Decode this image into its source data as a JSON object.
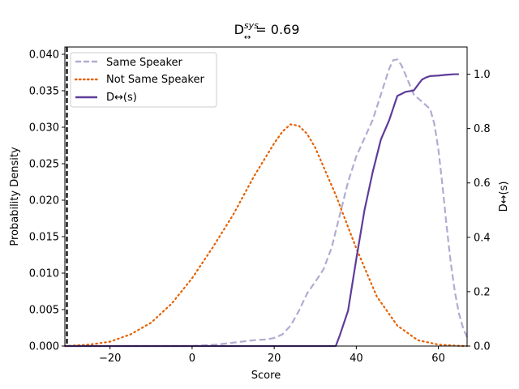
{
  "chart_data": {
    "type": "line",
    "title": "D",
    "title_sup": "sys",
    "title_sub": "↔",
    "title_value": "= 0.69",
    "xlabel": "Score",
    "ylabel": "Probability Density",
    "y2label": "D↔(s)",
    "xlim": [
      -31,
      67
    ],
    "ylim": [
      0,
      0.041
    ],
    "y2lim": [
      0,
      1.1
    ],
    "xticks": [
      -20,
      0,
      20,
      40,
      60
    ],
    "xtick_labels": [
      "−20",
      "0",
      "20",
      "40",
      "60"
    ],
    "yticks": [
      0,
      0.005,
      0.01,
      0.015,
      0.02,
      0.025,
      0.03,
      0.035,
      0.04
    ],
    "ytick_labels": [
      "0.000",
      "0.005",
      "0.010",
      "0.015",
      "0.020",
      "0.025",
      "0.030",
      "0.035",
      "0.040"
    ],
    "y2ticks": [
      0,
      0.2,
      0.4,
      0.6,
      0.8,
      1.0
    ],
    "y2tick_labels": [
      "0.0",
      "0.2",
      "0.4",
      "0.6",
      "0.8",
      "1.0"
    ],
    "legend_position": "top-left",
    "threshold_line_x": -30.5,
    "series": [
      {
        "name": "Same Speaker",
        "axis": "left",
        "style": "dashed",
        "color": "#b2abd2",
        "x": [
          -31,
          0,
          3,
          6,
          9,
          12,
          15,
          18,
          20,
          22,
          24,
          26,
          28,
          30,
          32,
          34,
          36,
          38,
          40,
          42,
          44,
          46,
          48,
          49,
          50,
          51,
          52,
          54,
          56,
          58,
          59,
          60,
          61,
          62,
          63,
          64,
          65,
          66,
          67
        ],
        "y": [
          0,
          0,
          0.0001,
          0.0002,
          0.0004,
          0.0006,
          0.0008,
          0.0009,
          0.0011,
          0.0016,
          0.0028,
          0.0048,
          0.0072,
          0.0088,
          0.0105,
          0.0135,
          0.018,
          0.0225,
          0.026,
          0.0285,
          0.031,
          0.0345,
          0.038,
          0.0392,
          0.0393,
          0.0385,
          0.0372,
          0.0345,
          0.0335,
          0.0325,
          0.0305,
          0.027,
          0.022,
          0.0165,
          0.0115,
          0.0075,
          0.0045,
          0.0025,
          0.0012
        ]
      },
      {
        "name": "Not Same Speaker",
        "axis": "left",
        "style": "dotted",
        "color": "#e66101",
        "x": [
          -31,
          -25,
          -20,
          -15,
          -10,
          -5,
          0,
          5,
          10,
          15,
          20,
          22,
          24,
          26,
          28,
          30,
          35,
          40,
          45,
          50,
          55,
          60,
          65,
          67
        ],
        "y": [
          0,
          0.0002,
          0.0006,
          0.0016,
          0.0032,
          0.0058,
          0.0093,
          0.0135,
          0.018,
          0.0232,
          0.0278,
          0.0294,
          0.0304,
          0.0302,
          0.0291,
          0.0272,
          0.0207,
          0.0134,
          0.0068,
          0.0028,
          0.0008,
          0.0002,
          3e-05,
          0
        ]
      },
      {
        "name": "D↔(s)",
        "axis": "right",
        "style": "solid",
        "color": "#5e3c99",
        "x": [
          -31,
          35,
          36,
          38,
          40,
          42,
          44,
          46,
          48,
          50,
          52,
          54,
          55,
          56,
          57,
          58,
          60,
          62,
          64,
          65
        ],
        "y": [
          0,
          0,
          0.04,
          0.13,
          0.32,
          0.5,
          0.64,
          0.76,
          0.83,
          0.92,
          0.935,
          0.94,
          0.96,
          0.98,
          0.988,
          0.993,
          0.995,
          0.998,
          1.0,
          1.0
        ]
      }
    ]
  }
}
